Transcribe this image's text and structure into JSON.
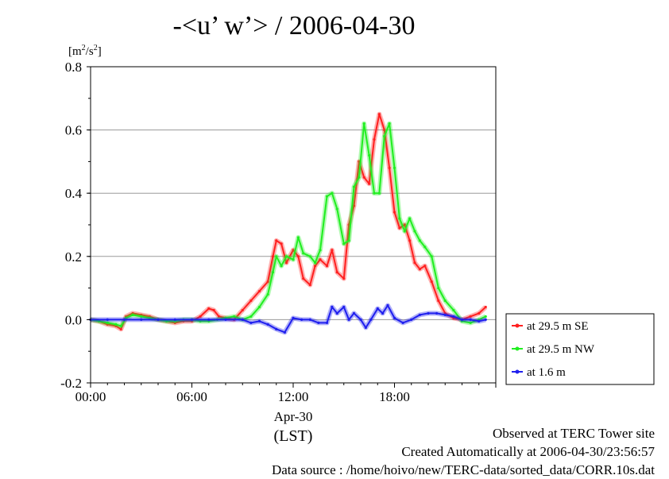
{
  "header": {
    "title": "-<u’ w’> / 2006-04-30"
  },
  "yunit": {
    "base": "[m",
    "sup1": "2",
    "mid": "/s",
    "sup2": "2",
    "end": "]"
  },
  "notes": {
    "observed": "Observed at TERC Tower site",
    "created": "Created Automatically at 2006-04-30/23:56:57",
    "source": "Data source : /home/hoivo/new/TERC-data/sorted_data/CORR.10s.dat"
  },
  "chart_data": {
    "type": "line",
    "title": "-<u’ w’> / 2006-04-30",
    "ylabel": "[m2/s2]",
    "ylim": [
      -0.2,
      0.8
    ],
    "xlim": [
      0,
      24
    ],
    "grid": true,
    "legend_position": "right",
    "y_ticks": [
      "-0.2",
      "0.0",
      "0.2",
      "0.4",
      "0.6",
      "0.8"
    ],
    "y_tick_values": [
      -0.2,
      0.0,
      0.2,
      0.4,
      0.6,
      0.8
    ],
    "x_ticks": [
      "00:00",
      "06:00",
      "12:00",
      "18:00"
    ],
    "x_tick_values": [
      0,
      6,
      12,
      18
    ],
    "x_sublabels": [
      "Apr-30",
      "(LST)"
    ],
    "series": [
      {
        "name": "at 29.5 m SE",
        "color": "#ff2020",
        "x": [
          0,
          0.5,
          1,
          1.5,
          1.8,
          2.1,
          2.5,
          3,
          3.5,
          4,
          4.5,
          5,
          5.5,
          6,
          6.5,
          7,
          7.3,
          7.6,
          8,
          8.5,
          9,
          9.5,
          10,
          10.5,
          10.8,
          11,
          11.3,
          11.6,
          12,
          12.3,
          12.6,
          13,
          13.3,
          13.6,
          14,
          14.3,
          14.6,
          15,
          15.3,
          15.6,
          15.9,
          16.2,
          16.5,
          16.8,
          17.1,
          17.4,
          17.7,
          18,
          18.3,
          18.6,
          18.9,
          19.2,
          19.5,
          19.8,
          20.2,
          20.6,
          21,
          21.5,
          22,
          22.5,
          23,
          23.4
        ],
        "values": [
          0.0,
          -0.005,
          -0.015,
          -0.02,
          -0.03,
          0.01,
          0.02,
          0.015,
          0.01,
          0.0,
          -0.005,
          -0.01,
          -0.005,
          -0.005,
          0.01,
          0.035,
          0.03,
          0.01,
          0.005,
          0.0,
          0.03,
          0.06,
          0.09,
          0.12,
          0.2,
          0.25,
          0.24,
          0.18,
          0.22,
          0.2,
          0.13,
          0.11,
          0.17,
          0.19,
          0.17,
          0.22,
          0.15,
          0.13,
          0.3,
          0.36,
          0.5,
          0.45,
          0.43,
          0.57,
          0.65,
          0.6,
          0.48,
          0.34,
          0.29,
          0.3,
          0.25,
          0.18,
          0.16,
          0.17,
          0.12,
          0.06,
          0.02,
          0.005,
          0.0,
          0.01,
          0.02,
          0.04
        ]
      },
      {
        "name": "at 29.5 m NW",
        "color": "#20ee20",
        "x": [
          0,
          0.5,
          1,
          1.5,
          1.8,
          2.1,
          2.5,
          3,
          3.5,
          4,
          4.5,
          5,
          5.5,
          6,
          6.5,
          7,
          7.5,
          8,
          8.5,
          9,
          9.5,
          10,
          10.5,
          10.8,
          11,
          11.3,
          11.6,
          12,
          12.3,
          12.6,
          13,
          13.3,
          13.6,
          14,
          14.3,
          14.6,
          15,
          15.3,
          15.6,
          15.9,
          16.2,
          16.5,
          16.8,
          17.1,
          17.4,
          17.7,
          18,
          18.3,
          18.6,
          18.9,
          19.2,
          19.5,
          19.8,
          20.2,
          20.6,
          21,
          21.5,
          22,
          22.5,
          23,
          23.4
        ],
        "values": [
          0.0,
          -0.005,
          -0.01,
          -0.015,
          -0.02,
          0.005,
          0.015,
          0.01,
          0.005,
          0.0,
          -0.005,
          -0.005,
          0.0,
          0.0,
          -0.005,
          -0.005,
          0.0,
          0.005,
          0.01,
          0.0,
          0.01,
          0.04,
          0.08,
          0.15,
          0.2,
          0.17,
          0.2,
          0.19,
          0.26,
          0.21,
          0.2,
          0.18,
          0.22,
          0.39,
          0.4,
          0.35,
          0.24,
          0.25,
          0.42,
          0.45,
          0.62,
          0.52,
          0.4,
          0.4,
          0.58,
          0.62,
          0.48,
          0.32,
          0.28,
          0.32,
          0.28,
          0.25,
          0.23,
          0.2,
          0.1,
          0.06,
          0.03,
          -0.005,
          -0.01,
          0.0,
          0.01
        ]
      },
      {
        "name": "at 1.6 m",
        "color": "#2020ee",
        "x": [
          0,
          1,
          2,
          3,
          4,
          5,
          6,
          7,
          8,
          9,
          9.5,
          10,
          10.5,
          11,
          11.5,
          12,
          12.5,
          13,
          13.5,
          14,
          14.3,
          14.6,
          15,
          15.3,
          15.6,
          16,
          16.3,
          16.6,
          17,
          17.3,
          17.6,
          18,
          18.5,
          19,
          19.5,
          20,
          20.5,
          21,
          21.5,
          22,
          22.5,
          23,
          23.4
        ],
        "values": [
          0.0,
          0.0,
          0.0,
          0.0,
          0.0,
          0.0,
          0.0,
          0.0,
          0.0,
          0.0,
          -0.01,
          -0.005,
          -0.015,
          -0.03,
          -0.04,
          0.005,
          0.0,
          0.0,
          -0.01,
          -0.01,
          0.04,
          0.02,
          0.04,
          0.0,
          0.02,
          0.0,
          -0.025,
          0.0,
          0.035,
          0.02,
          0.045,
          0.005,
          -0.01,
          0.0,
          0.015,
          0.02,
          0.02,
          0.015,
          0.01,
          0.0,
          0.0,
          -0.005,
          0.0
        ]
      }
    ]
  }
}
